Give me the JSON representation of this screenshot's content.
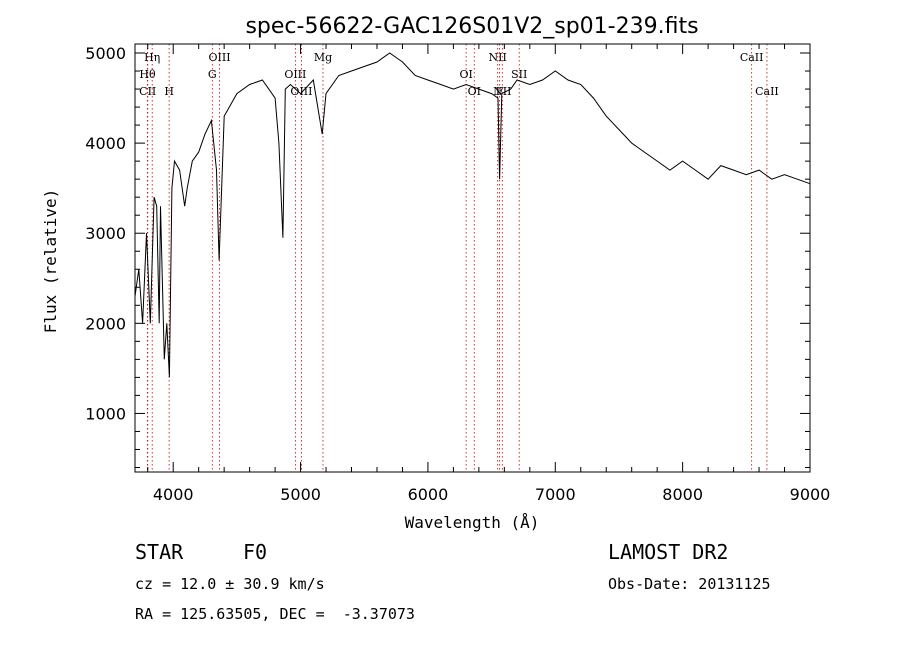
{
  "chart_data": {
    "type": "line",
    "title": "spec-56622-GAC126S01V2_sp01-239.fits",
    "xlabel": "Wavelength (Å)",
    "ylabel": "Flux (relative)",
    "xlim": [
      3700,
      9000
    ],
    "ylim": [
      350,
      5100
    ],
    "xticks": [
      4000,
      5000,
      6000,
      7000,
      8000,
      9000
    ],
    "yticks": [
      1000,
      2000,
      3000,
      4000,
      5000
    ],
    "series": [
      {
        "x": [
          3700,
          3730,
          3760,
          3790,
          3820,
          3850,
          3870,
          3890,
          3900,
          3930,
          3950,
          3970,
          3990,
          4010,
          4050,
          4090,
          4110,
          4150,
          4200,
          4250,
          4300,
          4340,
          4360,
          4400,
          4500,
          4600,
          4700,
          4800,
          4830,
          4861,
          4880,
          4920,
          5000,
          5100,
          5170,
          5200,
          5300,
          5400,
          5500,
          5600,
          5700,
          5750,
          5800,
          5900,
          6000,
          6100,
          6200,
          6300,
          6400,
          6500,
          6550,
          6563,
          6580,
          6650,
          6700,
          6800,
          6900,
          7000,
          7100,
          7200,
          7300,
          7400,
          7500,
          7600,
          7700,
          7800,
          7900,
          8000,
          8100,
          8200,
          8300,
          8400,
          8500,
          8600,
          8700,
          8800,
          8900,
          9000
        ],
        "y": [
          2300,
          2600,
          2000,
          3000,
          2000,
          3400,
          3300,
          2000,
          3300,
          1600,
          2000,
          1400,
          3500,
          3800,
          3700,
          3300,
          3500,
          3800,
          3900,
          4100,
          4250,
          3700,
          2700,
          4300,
          4550,
          4650,
          4700,
          4500,
          4000,
          2950,
          4600,
          4650,
          4550,
          4700,
          4100,
          4550,
          4750,
          4800,
          4850,
          4900,
          5000,
          4950,
          4900,
          4750,
          4700,
          4650,
          4600,
          4650,
          4600,
          4550,
          4500,
          3600,
          4550,
          4600,
          4700,
          4650,
          4700,
          4800,
          4700,
          4650,
          4500,
          4300,
          4150,
          4000,
          3900,
          3800,
          3700,
          3800,
          3700,
          3600,
          3750,
          3700,
          3650,
          3700,
          3600,
          3650,
          3600,
          3550
        ]
      }
    ],
    "lines": [
      {
        "label": "CII",
        "x": 3800,
        "row": 3
      },
      {
        "label": "Hη",
        "x": 3835,
        "row": 1
      },
      {
        "label": "Hθ",
        "x": 3798,
        "row": 2
      },
      {
        "label": "H",
        "x": 3968,
        "row": 3
      },
      {
        "label": "OIII",
        "x": 4364,
        "row": 1
      },
      {
        "label": "G",
        "x": 4307,
        "row": 2
      },
      {
        "label": "OIII",
        "x": 4959,
        "row": 2
      },
      {
        "label": "OIII",
        "x": 5007,
        "row": 3
      },
      {
        "label": "Mg",
        "x": 5176,
        "row": 1
      },
      {
        "label": "OI",
        "x": 6300,
        "row": 2
      },
      {
        "label": "OI",
        "x": 6364,
        "row": 3
      },
      {
        "label": "NII",
        "x": 6548,
        "row": 1
      },
      {
        "label": "F",
        "x": 6563,
        "row": 3
      },
      {
        "label": "NII",
        "x": 6584,
        "row": 3
      },
      {
        "label": "SII",
        "x": 6717,
        "row": 2
      },
      {
        "label": "CaII",
        "x": 8542,
        "row": 1
      },
      {
        "label": "CaII",
        "x": 8662,
        "row": 3
      }
    ],
    "grid": false,
    "line_color": "#000000",
    "marker_color": "#cc0000"
  },
  "info": {
    "class": "STAR",
    "subclass": "F0",
    "cz": "cz = 12.0 ± 30.9 km/s",
    "coords": "RA = 125.63505, DEC =  -3.37073",
    "survey": "LAMOST DR2",
    "obs_date": "Obs-Date: 20131125"
  }
}
